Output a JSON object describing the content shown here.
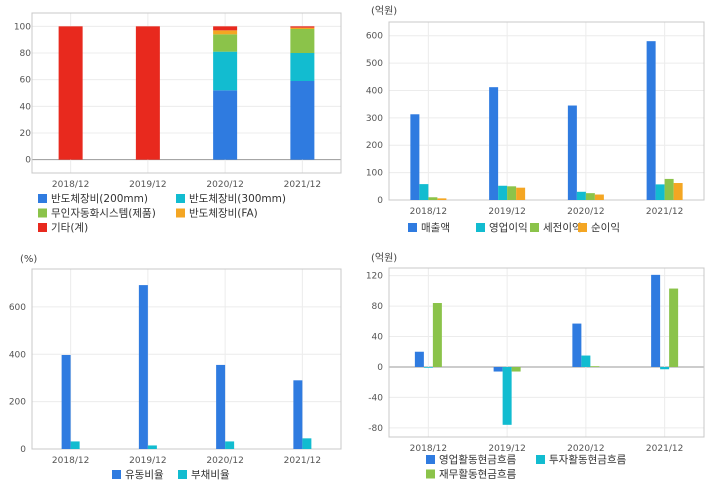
{
  "chart_data": [
    {
      "type": "bar",
      "stacked": true,
      "title": "",
      "unit": "",
      "categories": [
        "2018/12",
        "2019/12",
        "2020/12",
        "2021/12"
      ],
      "ylim": [
        -10,
        110
      ],
      "yticks": [
        0,
        20,
        40,
        60,
        80,
        100
      ],
      "grid": true,
      "legend_position": "bottom",
      "series": [
        {
          "name": "반도체장비(200mm)",
          "color": "#2f7be0",
          "values": [
            0,
            0,
            52,
            59
          ]
        },
        {
          "name": "반도체장비(300mm)",
          "color": "#12bcd0",
          "values": [
            0,
            0,
            29,
            21
          ]
        },
        {
          "name": "무인자동화시스템(제품)",
          "color": "#8bc34a",
          "values": [
            0,
            0,
            13,
            18
          ]
        },
        {
          "name": "반도체장비(FA)",
          "color": "#f4a623",
          "values": [
            0,
            0,
            3,
            1
          ]
        },
        {
          "name": "기타(계)",
          "color": "#e8291e",
          "values": [
            100,
            100,
            3,
            1
          ]
        }
      ]
    },
    {
      "type": "bar",
      "title": "",
      "unit": "(억원)",
      "categories": [
        "2018/12",
        "2019/12",
        "2020/12",
        "2021/12"
      ],
      "ylim": [
        0,
        650
      ],
      "yticks": [
        0,
        100,
        200,
        300,
        400,
        500,
        600
      ],
      "grid": true,
      "legend_position": "bottom",
      "series": [
        {
          "name": "매출액",
          "color": "#2f7be0",
          "values": [
            313,
            412,
            345,
            580
          ]
        },
        {
          "name": "영업이익",
          "color": "#12bcd0",
          "values": [
            58,
            52,
            30,
            57
          ]
        },
        {
          "name": "세전이익",
          "color": "#8bc34a",
          "values": [
            10,
            50,
            25,
            77
          ]
        },
        {
          "name": "순이익",
          "color": "#f4a623",
          "values": [
            6,
            45,
            20,
            62
          ]
        }
      ]
    },
    {
      "type": "bar",
      "title": "",
      "unit": "(%)",
      "categories": [
        "2018/12",
        "2019/12",
        "2020/12",
        "2021/12"
      ],
      "ylim": [
        0,
        760
      ],
      "yticks": [
        0,
        200,
        400,
        600
      ],
      "grid": true,
      "legend_position": "bottom",
      "series": [
        {
          "name": "유동비율",
          "color": "#2f7be0",
          "values": [
            397,
            692,
            355,
            290
          ]
        },
        {
          "name": "부채비율",
          "color": "#12bcd0",
          "values": [
            32,
            15,
            32,
            45
          ]
        }
      ]
    },
    {
      "type": "bar",
      "title": "",
      "unit": "(억원)",
      "categories": [
        "2018/12",
        "2019/12",
        "2020/12",
        "2021/12"
      ],
      "ylim": [
        -92,
        130
      ],
      "yticks": [
        -80,
        -40,
        0,
        40,
        80,
        120
      ],
      "grid": true,
      "legend_position": "bottom",
      "series": [
        {
          "name": "영업활동현금흐름",
          "color": "#2f7be0",
          "values": [
            20,
            -6,
            57,
            121
          ]
        },
        {
          "name": "투자활동현금흐름",
          "color": "#12bcd0",
          "values": [
            -1,
            -76,
            15,
            -3
          ]
        },
        {
          "name": "재무활동현금흐름",
          "color": "#8bc34a",
          "values": [
            84,
            -6,
            1,
            103
          ]
        }
      ]
    }
  ]
}
